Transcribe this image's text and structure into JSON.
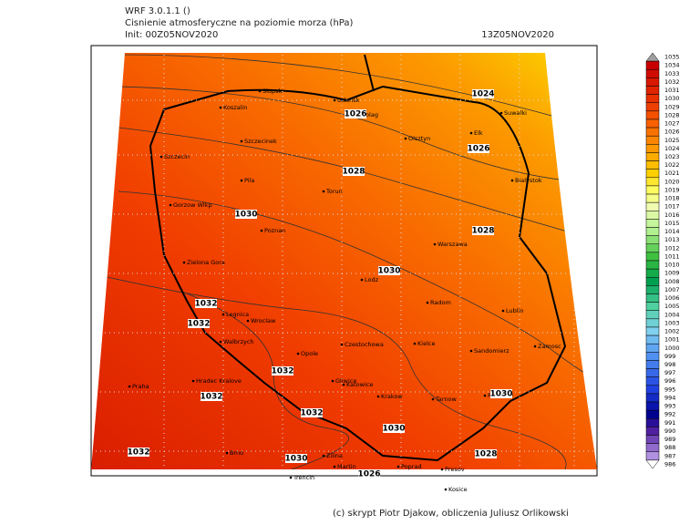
{
  "header": {
    "model": "WRF 3.0.1.1 ()",
    "title": "Cisnienie atmosferyczne na poziomie morza (hPa)",
    "init": "Init: 00Z05NOV2020",
    "valid": "13Z05NOV2020"
  },
  "cities": [
    "Slupsk",
    "Gdansk",
    "Koszalin",
    "Elblag",
    "Suwalki",
    "Szczecinek",
    "Olsztyn",
    "Elk",
    "Szczecin",
    "Bialystok",
    "Pila",
    "Torun",
    "Gorzow Wlkp",
    "Poznan",
    "Warszawa",
    "Zielona Gora",
    "Lodz",
    "Radom",
    "Legnica",
    "Wroclaw",
    "Lublin",
    "Walbrzych",
    "Opole",
    "Czestochowa",
    "Kielce",
    "Sandomierz",
    "Zamosc",
    "Praha",
    "Hradec Kralove",
    "Gliwice",
    "Katowice",
    "Krakow",
    "Tarnow",
    "Rzeszow",
    "Brno",
    "Zilina",
    "Martin",
    "Poprad",
    "Presov",
    "Kosice",
    "Trencin"
  ],
  "contour_labels": [
    "1024",
    "1026",
    "1026",
    "1028",
    "1030",
    "1028",
    "1030",
    "1032",
    "1032",
    "1032",
    "1032",
    "1030",
    "1032",
    "1030",
    "1032",
    "1030",
    "1028",
    "1026"
  ],
  "colorbar": [
    1035,
    1034,
    1033,
    1032,
    1031,
    1030,
    1029,
    1028,
    1027,
    1026,
    1025,
    1024,
    1023,
    1022,
    1021,
    1020,
    1019,
    1018,
    1017,
    1016,
    1015,
    1014,
    1013,
    1012,
    1011,
    1010,
    1009,
    1008,
    1007,
    1006,
    1005,
    1004,
    1003,
    1002,
    1001,
    1000,
    999,
    998,
    997,
    996,
    995,
    994,
    993,
    992,
    991,
    990,
    989,
    988,
    987,
    986
  ],
  "footer": "(c) skrypt Piotr Djakow, obliczenia Juliusz Orlikowski"
}
